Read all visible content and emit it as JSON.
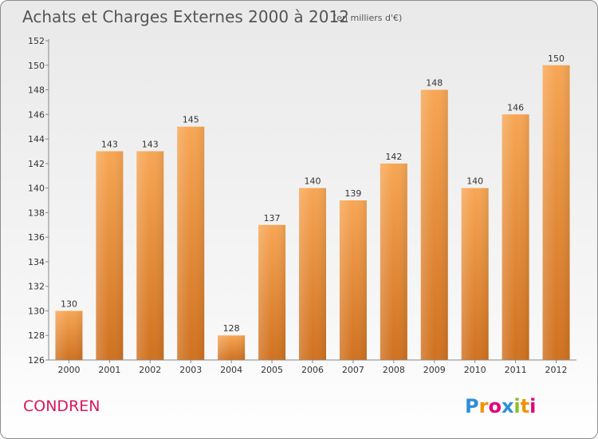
{
  "chart_data": {
    "type": "bar",
    "title": "Achats et Charges Externes 2000 à 2012",
    "subtitle": "(en milliers d'€)",
    "categories": [
      "2000",
      "2001",
      "2002",
      "2003",
      "2004",
      "2005",
      "2006",
      "2007",
      "2008",
      "2009",
      "2010",
      "2011",
      "2012"
    ],
    "values": [
      130,
      143,
      143,
      145,
      128,
      137,
      140,
      139,
      142,
      148,
      140,
      146,
      150
    ],
    "ylim": [
      126,
      152
    ],
    "yticks": [
      126,
      128,
      130,
      132,
      134,
      136,
      138,
      140,
      142,
      144,
      146,
      148,
      150,
      152
    ],
    "xlabel": "",
    "ylabel": "",
    "grid": false,
    "bar_color_top": "#f7a654",
    "bar_color_bottom": "#d0711f"
  },
  "place_name": "CONDREN",
  "brand": {
    "name": "Proxiti",
    "letters": [
      "P",
      "r",
      "o",
      "x",
      "i",
      "t",
      "i"
    ],
    "letter_colors": [
      "#2f8fd8",
      "#f39200",
      "#e2007a",
      "#2f8fd8",
      "#8cbf26",
      "#f39200",
      "#e2007a"
    ]
  }
}
